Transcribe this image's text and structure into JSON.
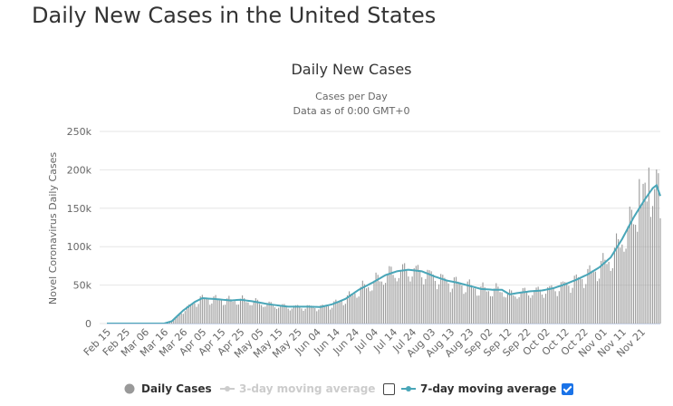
{
  "page": {
    "title": "Daily New Cases in the United States"
  },
  "chart_data": {
    "type": "bar+line",
    "title": "Daily New Cases",
    "subtitle_line1": "Cases per Day",
    "subtitle_line2": "Data as of 0:00 GMT+0",
    "ylabel": "Novel Coronavirus Daily Cases",
    "ylim": [
      0,
      250000
    ],
    "yticks": [
      0,
      50000,
      100000,
      150000,
      200000,
      250000
    ],
    "ytick_labels": [
      "0",
      "50k",
      "100k",
      "150k",
      "200k",
      "250k"
    ],
    "xticks": [
      "Feb 15",
      "Feb 25",
      "Mar 06",
      "Mar 16",
      "Mar 26",
      "Apr 05",
      "Apr 15",
      "Apr 25",
      "May 05",
      "May 15",
      "May 25",
      "Jun 04",
      "Jun 14",
      "Jun 24",
      "Jul 04",
      "Jul 14",
      "Jul 24",
      "Aug 03",
      "Aug 13",
      "Aug 23",
      "Sep 02",
      "Sep 12",
      "Sep 22",
      "Oct 02",
      "Oct 12",
      "Oct 22",
      "Nov 01",
      "Nov 11",
      "Nov 21"
    ],
    "num_days": 291,
    "moving_average_anchors": [
      {
        "day": 0,
        "value": 0
      },
      {
        "day": 30,
        "value": 0
      },
      {
        "day": 34,
        "value": 3000
      },
      {
        "day": 40,
        "value": 17000
      },
      {
        "day": 46,
        "value": 28000
      },
      {
        "day": 50,
        "value": 33000
      },
      {
        "day": 56,
        "value": 32000
      },
      {
        "day": 65,
        "value": 30000
      },
      {
        "day": 70,
        "value": 31000
      },
      {
        "day": 76,
        "value": 29000
      },
      {
        "day": 85,
        "value": 25000
      },
      {
        "day": 95,
        "value": 22000
      },
      {
        "day": 105,
        "value": 22000
      },
      {
        "day": 112,
        "value": 21500
      },
      {
        "day": 118,
        "value": 25000
      },
      {
        "day": 125,
        "value": 32000
      },
      {
        "day": 132,
        "value": 44000
      },
      {
        "day": 139,
        "value": 53000
      },
      {
        "day": 146,
        "value": 63000
      },
      {
        "day": 152,
        "value": 68000
      },
      {
        "day": 158,
        "value": 70000
      },
      {
        "day": 165,
        "value": 68000
      },
      {
        "day": 172,
        "value": 61000
      },
      {
        "day": 178,
        "value": 56000
      },
      {
        "day": 184,
        "value": 53000
      },
      {
        "day": 190,
        "value": 49000
      },
      {
        "day": 196,
        "value": 45000
      },
      {
        "day": 202,
        "value": 44000
      },
      {
        "day": 207,
        "value": 44000
      },
      {
        "day": 211,
        "value": 38000
      },
      {
        "day": 216,
        "value": 40000
      },
      {
        "day": 222,
        "value": 42000
      },
      {
        "day": 228,
        "value": 43000
      },
      {
        "day": 234,
        "value": 46000
      },
      {
        "day": 240,
        "value": 51000
      },
      {
        "day": 246,
        "value": 57000
      },
      {
        "day": 252,
        "value": 64000
      },
      {
        "day": 258,
        "value": 73000
      },
      {
        "day": 264,
        "value": 86000
      },
      {
        "day": 270,
        "value": 110000
      },
      {
        "day": 276,
        "value": 138000
      },
      {
        "day": 282,
        "value": 162000
      },
      {
        "day": 286,
        "value": 176000
      },
      {
        "day": 288,
        "value": 180000
      },
      {
        "day": 290,
        "value": 166000
      }
    ],
    "daily_variation_pattern": [
      1.06,
      1.14,
      1.08,
      0.98,
      0.92,
      0.78,
      0.84
    ],
    "daily_peaks": [
      {
        "day": 279,
        "value": 188000
      },
      {
        "day": 284,
        "value": 203000
      },
      {
        "day": 287,
        "value": 175000
      },
      {
        "day": 290,
        "value": 137000
      }
    ],
    "series": [
      {
        "name": "Daily Cases",
        "type": "bar",
        "color": "#999999"
      },
      {
        "name": "3-day moving average",
        "type": "line",
        "color": "#cccccc",
        "visible": false
      },
      {
        "name": "7-day moving average",
        "type": "line",
        "color": "#4aa3b8",
        "visible": true
      }
    ]
  },
  "colors": {
    "bar": "#999999",
    "line": "#49a6b8",
    "grid": "#e6e6e6",
    "axis_text": "#666666"
  },
  "legend": {
    "items": [
      {
        "label": "Daily Cases",
        "icon": "circle-icon",
        "state": "active"
      },
      {
        "label": "3-day moving average",
        "icon": "line-marker-icon",
        "state": "dim",
        "checked": false
      },
      {
        "label": "7-day moving average",
        "icon": "line-marker-icon",
        "state": "active",
        "checked": true
      }
    ]
  }
}
